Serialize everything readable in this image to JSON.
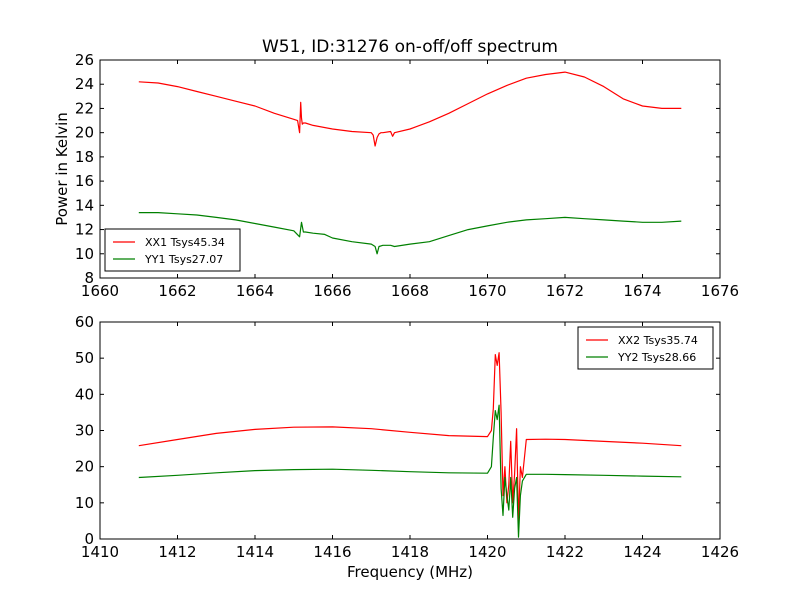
{
  "chart_data": [
    {
      "type": "line",
      "title": "W51, ID:31276 on-off/off spectrum",
      "xlabel": "",
      "ylabel": "Power in Kelvin",
      "xlim": [
        1660,
        1676
      ],
      "ylim": [
        8,
        26
      ],
      "xticks": [
        1660,
        1662,
        1664,
        1666,
        1668,
        1670,
        1672,
        1674,
        1676
      ],
      "yticks": [
        8,
        10,
        12,
        14,
        16,
        18,
        20,
        22,
        24,
        26
      ],
      "grid": false,
      "legend_position": "lower-left",
      "series": [
        {
          "name": "XX1 Tsys45.34",
          "color": "#ff0000",
          "x": [
            1661.0,
            1661.5,
            1662.0,
            1662.5,
            1663.0,
            1663.5,
            1664.0,
            1664.5,
            1665.0,
            1665.1,
            1665.15,
            1665.18,
            1665.2,
            1665.22,
            1665.25,
            1665.3,
            1665.5,
            1666.0,
            1666.5,
            1667.0,
            1667.05,
            1667.1,
            1667.15,
            1667.2,
            1667.25,
            1667.3,
            1667.5,
            1667.55,
            1667.6,
            1668.0,
            1668.5,
            1669.0,
            1669.5,
            1670.0,
            1670.5,
            1671.0,
            1671.5,
            1672.0,
            1672.5,
            1673.0,
            1673.5,
            1674.0,
            1674.5,
            1675.0
          ],
          "y": [
            24.2,
            24.1,
            23.8,
            23.4,
            23.0,
            22.6,
            22.2,
            21.6,
            21.1,
            21.0,
            20.0,
            22.5,
            21.2,
            20.7,
            20.8,
            20.8,
            20.6,
            20.3,
            20.1,
            20.0,
            19.8,
            18.9,
            19.6,
            19.9,
            20.0,
            20.0,
            20.1,
            19.7,
            20.0,
            20.3,
            20.9,
            21.6,
            22.4,
            23.2,
            23.9,
            24.5,
            24.8,
            25.0,
            24.6,
            23.8,
            22.8,
            22.2,
            22.0,
            22.0
          ]
        },
        {
          "name": "YY1 Tsys27.07",
          "color": "#008000",
          "x": [
            1661.0,
            1661.5,
            1662.0,
            1662.5,
            1663.0,
            1663.5,
            1664.0,
            1664.5,
            1665.0,
            1665.15,
            1665.2,
            1665.25,
            1665.3,
            1665.5,
            1665.8,
            1666.0,
            1666.5,
            1667.0,
            1667.1,
            1667.15,
            1667.2,
            1667.3,
            1667.5,
            1667.6,
            1668.0,
            1668.5,
            1669.0,
            1669.5,
            1670.0,
            1670.5,
            1671.0,
            1671.5,
            1672.0,
            1672.5,
            1673.0,
            1673.5,
            1674.0,
            1674.5,
            1675.0
          ],
          "y": [
            13.4,
            13.4,
            13.3,
            13.2,
            13.0,
            12.8,
            12.5,
            12.2,
            11.9,
            11.4,
            12.6,
            11.8,
            11.8,
            11.7,
            11.6,
            11.3,
            11.0,
            10.8,
            10.6,
            10.0,
            10.6,
            10.7,
            10.7,
            10.6,
            10.8,
            11.0,
            11.5,
            12.0,
            12.3,
            12.6,
            12.8,
            12.9,
            13.0,
            12.9,
            12.8,
            12.7,
            12.6,
            12.6,
            12.7
          ]
        }
      ]
    },
    {
      "type": "line",
      "title": "",
      "xlabel": "Frequency (MHz)",
      "ylabel": "",
      "xlim": [
        1410,
        1426
      ],
      "ylim": [
        0,
        60
      ],
      "xticks": [
        1410,
        1412,
        1414,
        1416,
        1418,
        1420,
        1422,
        1424,
        1426
      ],
      "yticks": [
        0,
        10,
        20,
        30,
        40,
        50,
        60
      ],
      "grid": false,
      "legend_position": "upper-right",
      "series": [
        {
          "name": "XX2 Tsys35.74",
          "color": "#ff0000",
          "x": [
            1411.0,
            1412.0,
            1413.0,
            1414.0,
            1415.0,
            1416.0,
            1417.0,
            1418.0,
            1419.0,
            1420.0,
            1420.1,
            1420.15,
            1420.2,
            1420.25,
            1420.3,
            1420.35,
            1420.4,
            1420.45,
            1420.5,
            1420.55,
            1420.6,
            1420.65,
            1420.7,
            1420.75,
            1420.8,
            1420.85,
            1420.9,
            1421.0,
            1421.5,
            1422.0,
            1423.0,
            1424.0,
            1425.0
          ],
          "y": [
            25.8,
            27.5,
            29.2,
            30.3,
            30.9,
            31.0,
            30.5,
            29.5,
            28.6,
            28.3,
            30.0,
            36.0,
            51.0,
            48.0,
            51.5,
            35.0,
            12.0,
            20.0,
            10.0,
            15.0,
            27.0,
            10.0,
            18.0,
            30.5,
            5.0,
            20.0,
            17.0,
            27.5,
            27.6,
            27.5,
            27.0,
            26.5,
            25.8
          ]
        },
        {
          "name": "YY2 Tsys28.66",
          "color": "#008000",
          "x": [
            1411.0,
            1412.0,
            1413.0,
            1414.0,
            1415.0,
            1416.0,
            1417.0,
            1418.0,
            1419.0,
            1420.0,
            1420.1,
            1420.15,
            1420.2,
            1420.25,
            1420.3,
            1420.35,
            1420.4,
            1420.45,
            1420.5,
            1420.55,
            1420.6,
            1420.65,
            1420.7,
            1420.75,
            1420.8,
            1420.85,
            1420.9,
            1421.0,
            1421.5,
            1422.0,
            1423.0,
            1424.0,
            1425.0
          ],
          "y": [
            17.0,
            17.6,
            18.3,
            18.9,
            19.2,
            19.3,
            19.0,
            18.6,
            18.3,
            18.2,
            20.0,
            28.0,
            35.5,
            33.0,
            37.0,
            14.0,
            6.5,
            17.0,
            12.0,
            8.0,
            17.0,
            6.0,
            14.0,
            17.0,
            0.5,
            12.0,
            16.0,
            17.9,
            17.9,
            17.8,
            17.6,
            17.4,
            17.2
          ]
        }
      ]
    }
  ]
}
